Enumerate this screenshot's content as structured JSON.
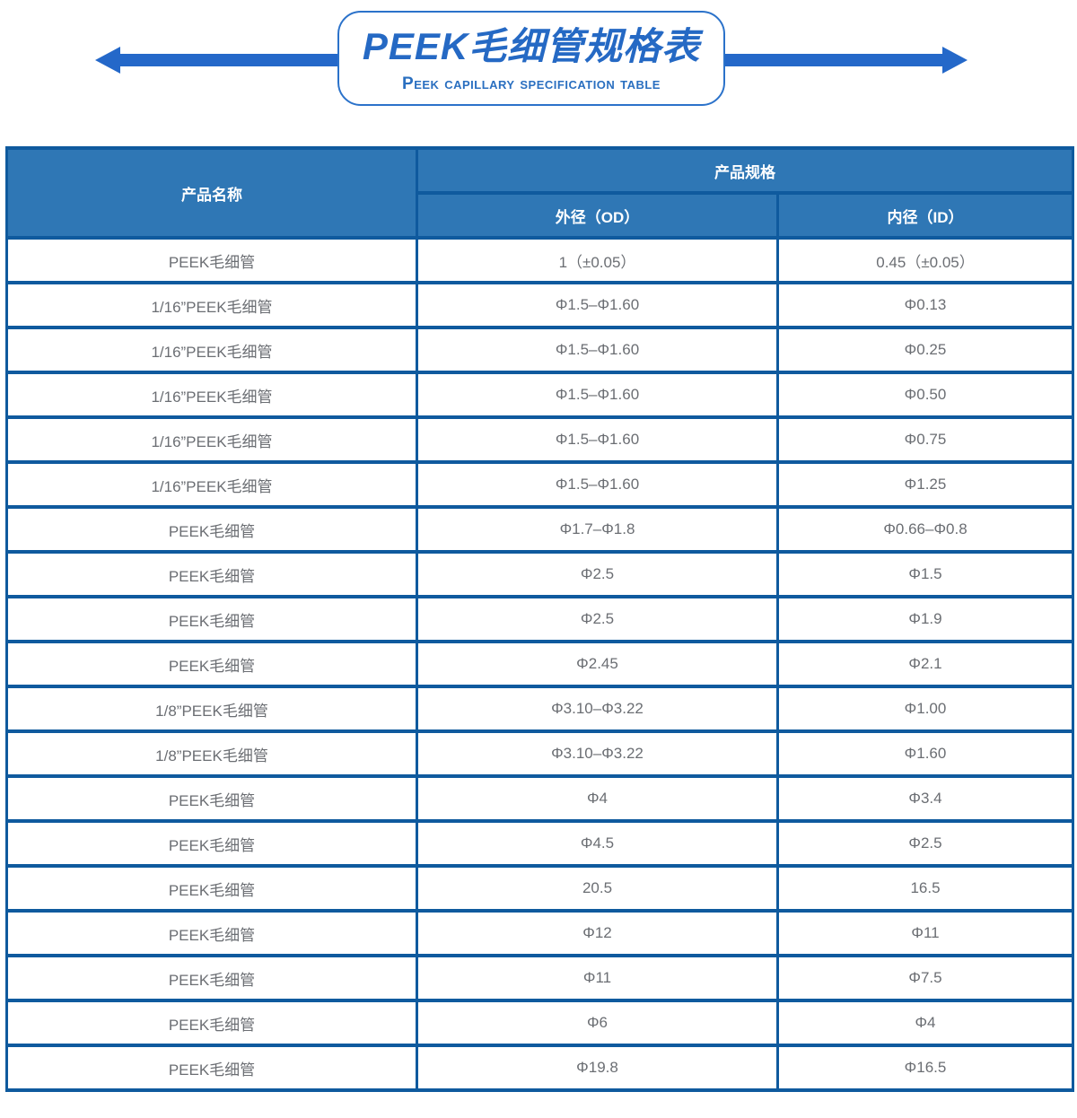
{
  "banner": {
    "title": "PEEK毛细管规格表",
    "subtitle": "Peek capillary specification table"
  },
  "table": {
    "col1_header": "产品名称",
    "group_header": "产品规格",
    "sub_headers": [
      "外径（OD）",
      "内径（ID）"
    ],
    "rows": [
      {
        "name": "PEEK毛细管",
        "od": "1（±0.05）",
        "id": "0.45（±0.05）"
      },
      {
        "name": "1/16”PEEK毛细管",
        "od": "Φ1.5–Φ1.60",
        "id": "Φ0.13"
      },
      {
        "name": "1/16”PEEK毛细管",
        "od": "Φ1.5–Φ1.60",
        "id": "Φ0.25"
      },
      {
        "name": "1/16”PEEK毛细管",
        "od": "Φ1.5–Φ1.60",
        "id": "Φ0.50"
      },
      {
        "name": "1/16”PEEK毛细管",
        "od": "Φ1.5–Φ1.60",
        "id": "Φ0.75"
      },
      {
        "name": "1/16”PEEK毛细管",
        "od": "Φ1.5–Φ1.60",
        "id": "Φ1.25"
      },
      {
        "name": "PEEK毛细管",
        "od": "Φ1.7–Φ1.8",
        "id": "Φ0.66–Φ0.8"
      },
      {
        "name": "PEEK毛细管",
        "od": "Φ2.5",
        "id": "Φ1.5"
      },
      {
        "name": "PEEK毛细管",
        "od": "Φ2.5",
        "id": "Φ1.9"
      },
      {
        "name": "PEEK毛细管",
        "od": "Φ2.45",
        "id": "Φ2.1"
      },
      {
        "name": "1/8”PEEK毛细管",
        "od": "Φ3.10–Φ3.22",
        "id": "Φ1.00"
      },
      {
        "name": "1/8”PEEK毛细管",
        "od": "Φ3.10–Φ3.22",
        "id": "Φ1.60"
      },
      {
        "name": "PEEK毛细管",
        "od": "Φ4",
        "id": "Φ3.4"
      },
      {
        "name": "PEEK毛细管",
        "od": "Φ4.5",
        "id": "Φ2.5"
      },
      {
        "name": "PEEK毛细管",
        "od": "20.5",
        "id": "16.5"
      },
      {
        "name": "PEEK毛细管",
        "od": "Φ12",
        "id": "Φ11"
      },
      {
        "name": "PEEK毛细管",
        "od": "Φ11",
        "id": "Φ7.5"
      },
      {
        "name": "PEEK毛细管",
        "od": "Φ6",
        "id": "Φ4"
      },
      {
        "name": "PEEK毛细管",
        "od": "Φ19.8",
        "id": "Φ16.5"
      }
    ]
  },
  "colors": {
    "arrow_blue": "#2468c9",
    "banner_border_blue": "#2b72ca",
    "title_blue": "#2569c4",
    "table_border_blue": "#0f5a9e",
    "header_fill_blue": "#2f77b5",
    "cell_text_gray": "#6b6e73"
  }
}
